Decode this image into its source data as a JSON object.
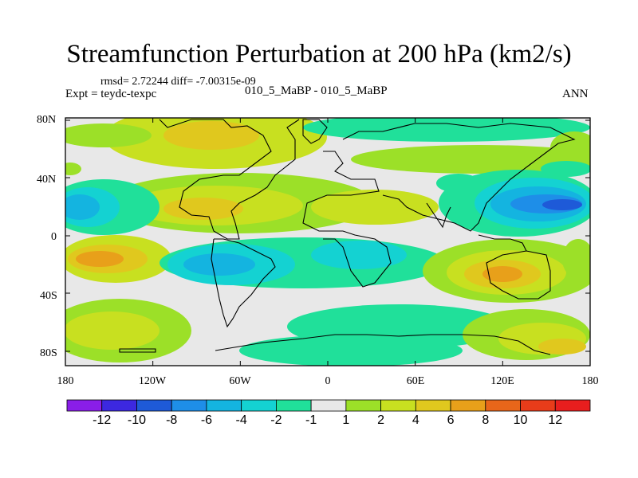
{
  "title": "Streamfunction Perturbation at 200 hPa (km2/s)",
  "stats": {
    "rmsd_text": "rmsd= 2.72244 diff= -7.00315e-09"
  },
  "left_label": "Expt = teydc-texpc",
  "case_label": "010_5_MaBP - 010_5_MaBP",
  "season": "ANN",
  "map": {
    "lat_labels": [
      "80N",
      "40N",
      "0",
      "40S",
      "80S"
    ],
    "lon_labels": [
      "180",
      "120W",
      "60W",
      "0",
      "60E",
      "120E",
      "180"
    ],
    "background_color": "#e8e8e8"
  },
  "colorbar": {
    "labels": [
      "-12",
      "-10",
      "-8",
      "-6",
      "-4",
      "-2",
      "-1",
      "1",
      "2",
      "4",
      "6",
      "8",
      "10",
      "12"
    ],
    "colors": [
      "#8a1ee8",
      "#3c28e0",
      "#1e5ad8",
      "#1e8ee8",
      "#14b4e0",
      "#14d2d2",
      "#20e09a",
      "#e8e8e8",
      "#9ce028",
      "#c8e020",
      "#e0c81e",
      "#e8a01a",
      "#e8661a",
      "#e83c1a",
      "#e81e1e"
    ]
  }
}
